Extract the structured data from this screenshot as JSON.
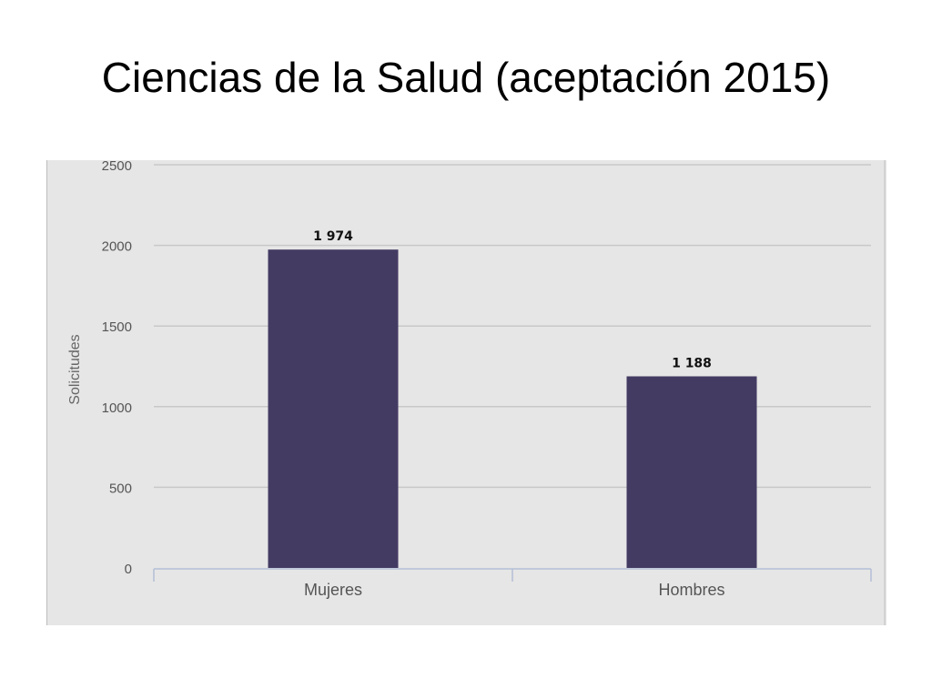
{
  "slide": {
    "title": "Ciencias de la Salud (aceptación 2015)"
  },
  "chart_data": {
    "type": "bar",
    "title": "",
    "xlabel": "",
    "ylabel": "Solicitudes",
    "categories": [
      "Mujeres",
      "Hombres"
    ],
    "values": [
      1974,
      1188
    ],
    "data_labels": [
      "1 974",
      "1 188"
    ],
    "ylim": [
      0,
      2500
    ],
    "yticks": [
      0,
      500,
      1000,
      1500,
      2000,
      2500
    ],
    "grid": true,
    "legend": "none",
    "colors": {
      "bar": "#443b63",
      "plot_background": "#e6e6e6",
      "gridline": "#c8c8c8",
      "axis_line": "#b4bfd6",
      "tick_text": "#555555",
      "data_label_text": "#111111"
    }
  }
}
